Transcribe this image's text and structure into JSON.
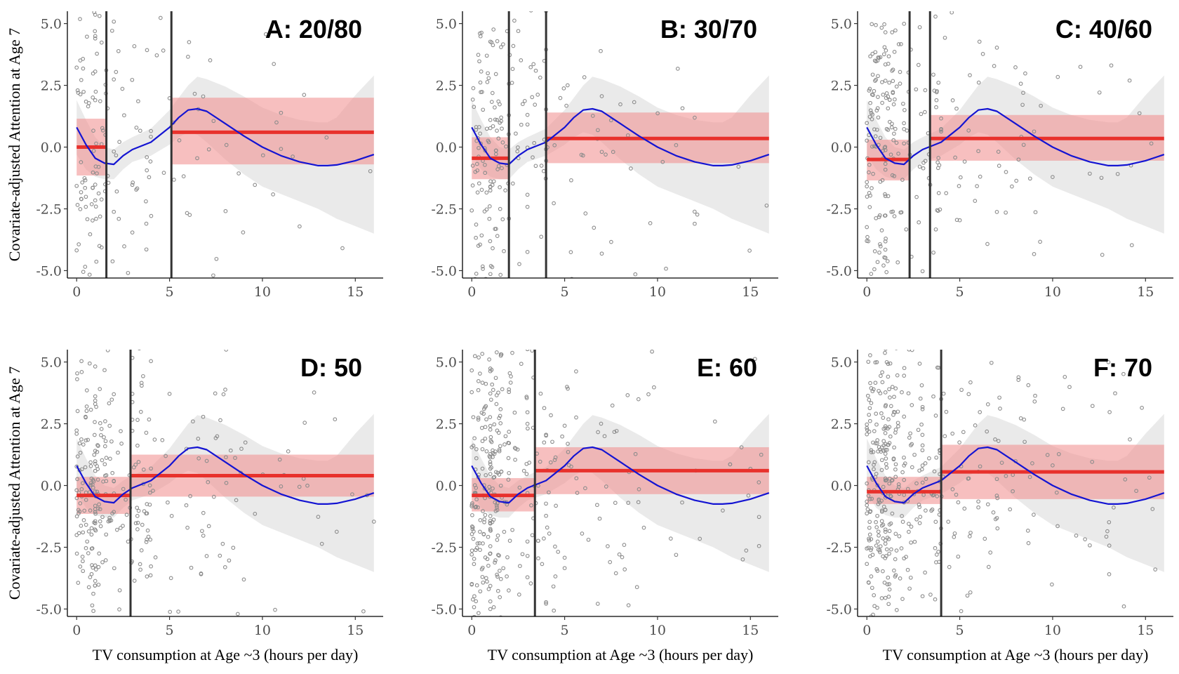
{
  "figure": {
    "xlabel": "TV consumption at Age ~3 (hours per day)",
    "ylabel": "Covariate-adjusted Attention at Age 7"
  },
  "colors": {
    "points": "#8c8c8c",
    "smooth_line": "#1414d2",
    "smooth_band": "#e6e6e6",
    "group_mean": "#e8312c",
    "group_band": "#f08a8a",
    "cutoff": "#333333"
  },
  "chart_data": [
    {
      "type": "scatter",
      "title": "A: 20/80",
      "xlim": [
        -0.5,
        16.5
      ],
      "ylim": [
        -5.3,
        5.5
      ],
      "x_ticks": [
        "0",
        "5",
        "10",
        "15"
      ],
      "y_ticks": [
        "5.0",
        "2.5",
        "0.0",
        "-2.5",
        "-5.0"
      ],
      "cutoffs": [
        1.6,
        5.1
      ],
      "groups": [
        {
          "x": [
            0,
            1.6
          ],
          "mean": 0.0,
          "lo": -1.15,
          "hi": 1.15
        },
        {
          "x": [
            5.1,
            16
          ],
          "mean": 0.6,
          "lo": -0.7,
          "hi": 2.0
        }
      ],
      "xlabel": "",
      "ylabel": "Covariate-adjusted Attention at Age 7"
    },
    {
      "type": "scatter",
      "title": "B: 30/70",
      "xlim": [
        -0.5,
        16.5
      ],
      "ylim": [
        -5.3,
        5.5
      ],
      "x_ticks": [
        "0",
        "5",
        "10",
        "15"
      ],
      "y_ticks": [
        "5.0",
        "2.5",
        "0.0",
        "-2.5",
        "-5.0"
      ],
      "cutoffs": [
        2.0,
        4.0
      ],
      "groups": [
        {
          "x": [
            0,
            2.0
          ],
          "mean": -0.45,
          "lo": -1.3,
          "hi": 0.4
        },
        {
          "x": [
            4.0,
            16
          ],
          "mean": 0.35,
          "lo": -0.65,
          "hi": 1.4
        }
      ],
      "xlabel": "",
      "ylabel": ""
    },
    {
      "type": "scatter",
      "title": "C: 40/60",
      "xlim": [
        -0.5,
        16.5
      ],
      "ylim": [
        -5.3,
        5.5
      ],
      "x_ticks": [
        "0",
        "5",
        "10",
        "15"
      ],
      "y_ticks": [
        "5.0",
        "2.5",
        "0.0",
        "-2.5",
        "-5.0"
      ],
      "cutoffs": [
        2.3,
        3.4
      ],
      "groups": [
        {
          "x": [
            0,
            2.3
          ],
          "mean": -0.5,
          "lo": -1.35,
          "hi": 0.3
        },
        {
          "x": [
            3.4,
            16
          ],
          "mean": 0.35,
          "lo": -0.55,
          "hi": 1.3
        }
      ],
      "xlabel": "",
      "ylabel": ""
    },
    {
      "type": "scatter",
      "title": "D: 50",
      "xlim": [
        -0.5,
        16.5
      ],
      "ylim": [
        -5.3,
        5.5
      ],
      "x_ticks": [
        "0",
        "5",
        "10",
        "15"
      ],
      "y_ticks": [
        "5.0",
        "2.5",
        "0.0",
        "-2.5",
        "-5.0"
      ],
      "cutoffs": [
        2.9
      ],
      "groups": [
        {
          "x": [
            0,
            2.9
          ],
          "mean": -0.4,
          "lo": -1.15,
          "hi": 0.35
        },
        {
          "x": [
            2.9,
            16
          ],
          "mean": 0.4,
          "lo": -0.45,
          "hi": 1.25
        }
      ],
      "xlabel": "TV consumption at Age ~3 (hours per day)",
      "ylabel": "Covariate-adjusted Attention at Age 7"
    },
    {
      "type": "scatter",
      "title": "E: 60",
      "xlim": [
        -0.5,
        16.5
      ],
      "ylim": [
        -5.3,
        5.5
      ],
      "x_ticks": [
        "0",
        "5",
        "10",
        "15"
      ],
      "y_ticks": [
        "5.0",
        "2.5",
        "0.0",
        "-2.5",
        "-5.0"
      ],
      "cutoffs": [
        3.4
      ],
      "groups": [
        {
          "x": [
            0,
            3.4
          ],
          "mean": -0.4,
          "lo": -1.05,
          "hi": 0.3
        },
        {
          "x": [
            3.4,
            16
          ],
          "mean": 0.6,
          "lo": -0.35,
          "hi": 1.55
        }
      ],
      "xlabel": "TV consumption at Age ~3 (hours per day)",
      "ylabel": ""
    },
    {
      "type": "scatter",
      "title": "F: 70",
      "xlim": [
        -0.5,
        16.5
      ],
      "ylim": [
        -5.3,
        5.5
      ],
      "x_ticks": [
        "0",
        "5",
        "10",
        "15"
      ],
      "y_ticks": [
        "5.0",
        "2.5",
        "0.0",
        "-2.5",
        "-5.0"
      ],
      "cutoffs": [
        4.0
      ],
      "groups": [
        {
          "x": [
            0,
            4.0
          ],
          "mean": -0.25,
          "lo": -0.75,
          "hi": 0.35
        },
        {
          "x": [
            4.0,
            16
          ],
          "mean": 0.55,
          "lo": -0.55,
          "hi": 1.65
        }
      ],
      "xlabel": "TV consumption at Age ~3 (hours per day)",
      "ylabel": ""
    }
  ],
  "smooth_fit": {
    "x": [
      0,
      0.5,
      1,
      1.5,
      2,
      2.5,
      3,
      4,
      5,
      5.5,
      6,
      6.5,
      7,
      8,
      9,
      10,
      11,
      12,
      13,
      13.5,
      14,
      15,
      16
    ],
    "y": [
      0.8,
      0.1,
      -0.45,
      -0.65,
      -0.7,
      -0.35,
      -0.1,
      0.2,
      0.8,
      1.2,
      1.5,
      1.55,
      1.45,
      0.95,
      0.45,
      0.0,
      -0.35,
      -0.6,
      -0.75,
      -0.75,
      -0.72,
      -0.55,
      -0.3
    ],
    "lo": [
      -0.3,
      -0.9,
      -1.2,
      -1.3,
      -1.3,
      -0.9,
      -0.6,
      -0.35,
      0.1,
      0.4,
      0.6,
      0.5,
      0.2,
      -0.5,
      -1.1,
      -1.6,
      -1.9,
      -2.2,
      -2.5,
      -2.7,
      -2.9,
      -3.2,
      -3.5
    ],
    "hi": [
      1.9,
      1.1,
      0.4,
      0.0,
      -0.1,
      0.2,
      0.4,
      0.75,
      1.5,
      2.0,
      2.5,
      2.85,
      2.75,
      2.45,
      2.05,
      1.6,
      1.3,
      1.1,
      1.0,
      1.0,
      1.2,
      2.1,
      2.9
    ]
  }
}
